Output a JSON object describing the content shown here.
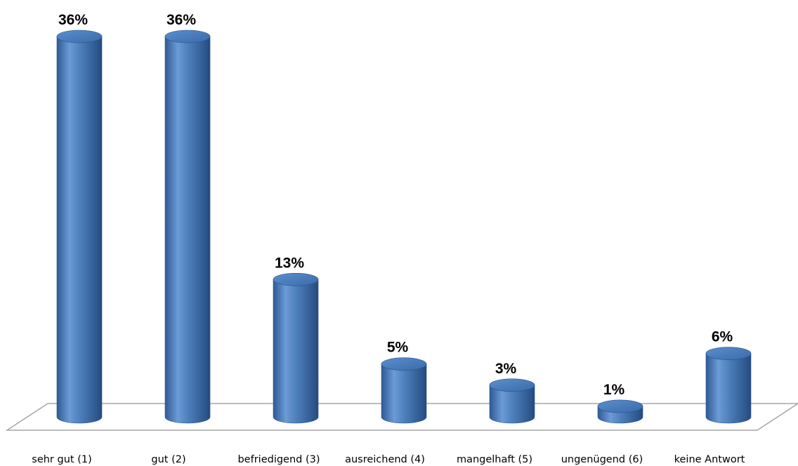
{
  "chart_data": {
    "type": "bar",
    "style": "3d-cylinder",
    "categories": [
      "sehr gut (1)",
      "gut (2)",
      "befriedigend  (3)",
      "ausreichend (4)",
      "mangelhaft (5)",
      "ungenügend (6)",
      "keine Antwort"
    ],
    "values": [
      36,
      36,
      13,
      5,
      3,
      1,
      6
    ],
    "data_labels": [
      "36%",
      "36%",
      "13%",
      "5%",
      "3%",
      "1%",
      "6%"
    ],
    "unit": "%",
    "ylim": [
      0,
      36
    ],
    "grid": false,
    "legend": "none",
    "colors": {
      "bar": "#4f81bd",
      "bar_dark": "#2e5a94",
      "bar_light": "#7aa6dc",
      "floor_line": "#a6a6a6"
    }
  }
}
